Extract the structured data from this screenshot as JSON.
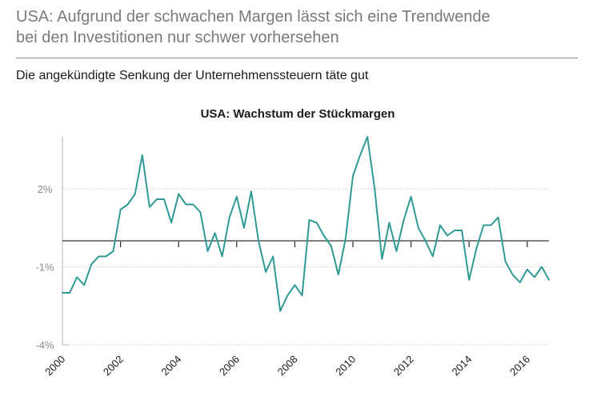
{
  "header": {
    "title_line1": "USA: Aufgrund der schwachen Margen lässt sich eine Trendwende",
    "title_line2": "bei den Investitionen nur schwer vorhersehen",
    "subtitle": "Die angekündigte Senkung der Unternehmenssteuern täte gut"
  },
  "colors": {
    "series": "#2f9a93",
    "zero_line": "#333333",
    "grid": "#c8c8c8"
  },
  "chart_data": {
    "type": "line",
    "title": "USA: Wachstum der Stückmargen",
    "xlabel": "",
    "ylabel": "",
    "xlim": [
      2000,
      2016.75
    ],
    "ylim": [
      -4,
      4
    ],
    "yticks": [
      2,
      -1,
      -4
    ],
    "ytick_labels": [
      "2%",
      "-1%",
      "-4%"
    ],
    "xticks": [
      2000,
      2002,
      2004,
      2006,
      2008,
      2010,
      2012,
      2014,
      2016
    ],
    "xtick_labels": [
      "2000",
      "2002",
      "2004",
      "2006",
      "2008",
      "2010",
      "2012",
      "2014",
      "2016"
    ],
    "grid": true,
    "series": [
      {
        "x": [
          2000.0,
          2000.25,
          2000.5,
          2000.75,
          2001.0,
          2001.25,
          2001.5,
          2001.75,
          2002.0,
          2002.25,
          2002.5,
          2002.75,
          2003.0,
          2003.25,
          2003.5,
          2003.75,
          2004.0,
          2004.25,
          2004.5,
          2004.75,
          2005.0,
          2005.25,
          2005.5,
          2005.75,
          2006.0,
          2006.25,
          2006.5,
          2006.75,
          2007.0,
          2007.25,
          2007.5,
          2007.75,
          2008.0,
          2008.25,
          2008.5,
          2008.75,
          2009.0,
          2009.25,
          2009.5,
          2009.75,
          2010.0,
          2010.25,
          2010.5,
          2010.75,
          2011.0,
          2011.25,
          2011.5,
          2011.75,
          2012.0,
          2012.25,
          2012.5,
          2012.75,
          2013.0,
          2013.25,
          2013.5,
          2013.75,
          2014.0,
          2014.25,
          2014.5,
          2014.75,
          2015.0,
          2015.25,
          2015.5,
          2015.75,
          2016.0,
          2016.25,
          2016.5,
          2016.75
        ],
        "values": [
          -2.0,
          -2.0,
          -1.4,
          -1.7,
          -0.9,
          -0.6,
          -0.6,
          -0.4,
          1.2,
          1.4,
          1.8,
          3.3,
          1.3,
          1.6,
          1.6,
          0.7,
          1.8,
          1.4,
          1.4,
          1.1,
          -0.4,
          0.3,
          -0.6,
          0.9,
          1.7,
          0.5,
          1.9,
          0.0,
          -1.2,
          -0.6,
          -2.7,
          -2.1,
          -1.7,
          -2.1,
          0.8,
          0.7,
          0.2,
          -0.2,
          -1.3,
          0.1,
          2.5,
          3.3,
          4.0,
          2.0,
          -0.7,
          0.7,
          -0.4,
          0.8,
          1.7,
          0.5,
          0.0,
          -0.6,
          0.6,
          0.2,
          0.4,
          0.4,
          -1.5,
          -0.3,
          0.6,
          0.6,
          0.9,
          -0.8,
          -1.3,
          -1.6,
          -1.1,
          -1.4,
          -1.0,
          -1.5
        ]
      }
    ]
  }
}
